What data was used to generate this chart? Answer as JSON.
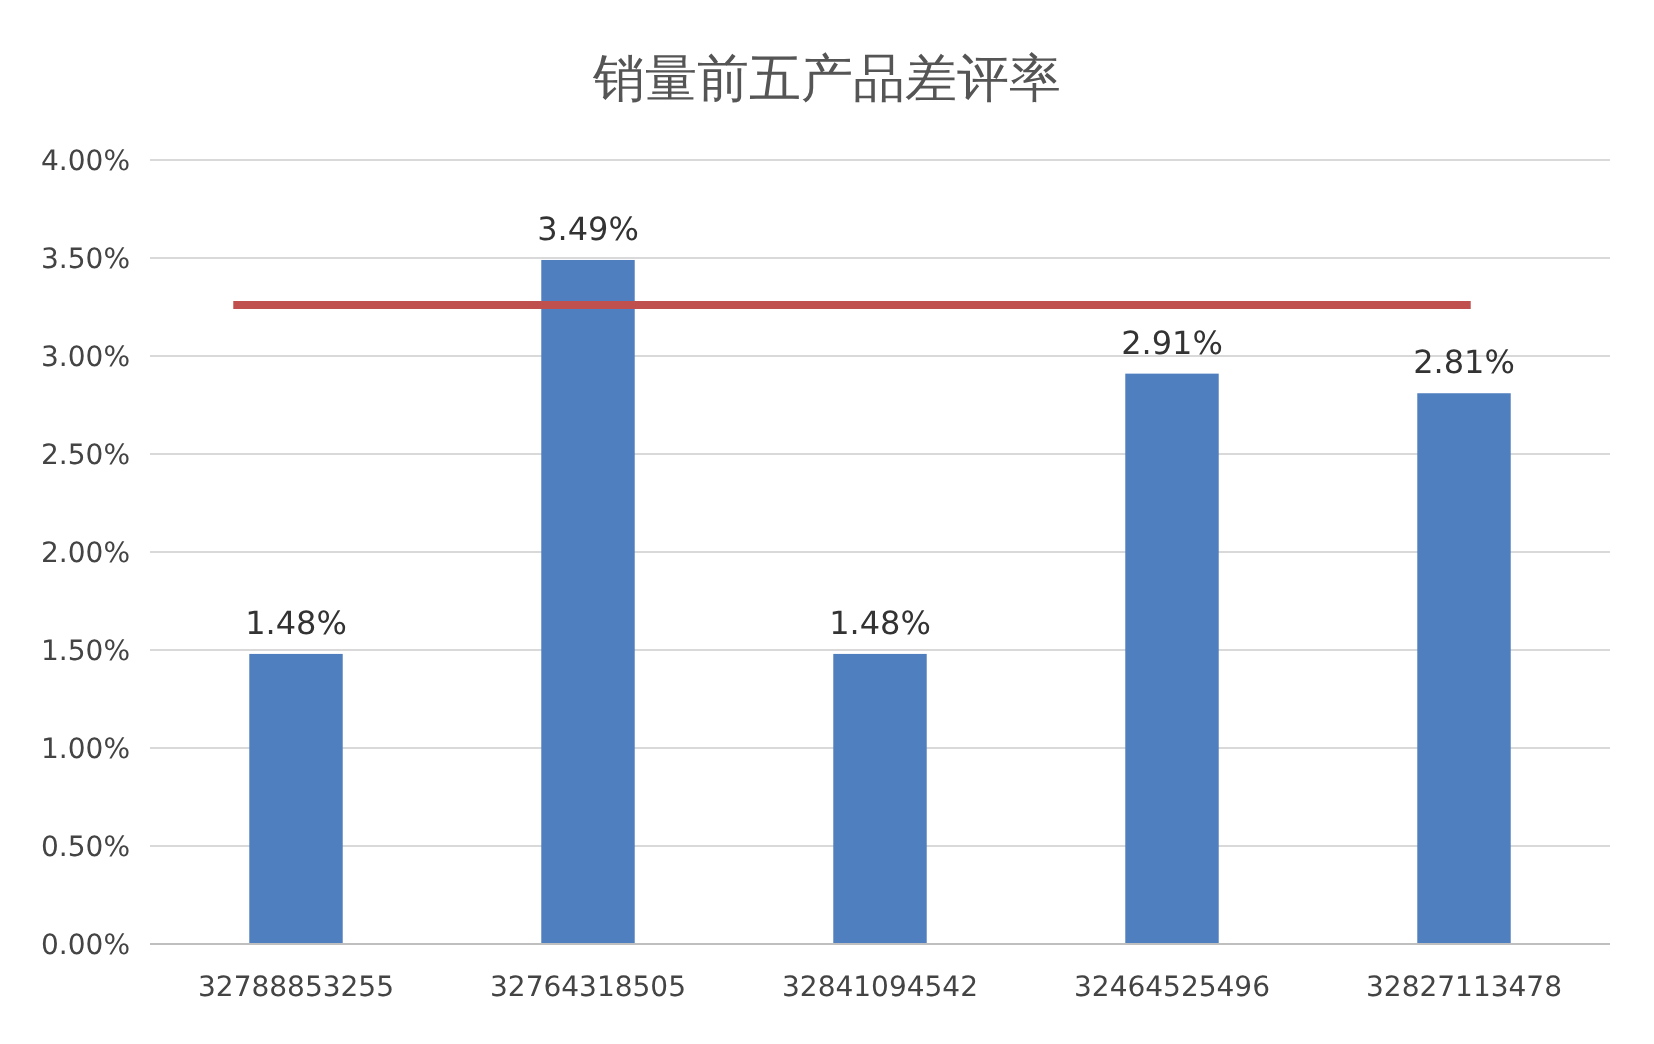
{
  "chart_data": {
    "type": "bar",
    "title": "销量前五产品差评率",
    "categories": [
      "32788853255",
      "32764318505",
      "32841094542",
      "32464525496",
      "32827113478"
    ],
    "values": [
      1.48,
      3.49,
      1.48,
      2.91,
      2.81
    ],
    "value_labels": [
      "1.48%",
      "3.49%",
      "1.48%",
      "2.91%",
      "2.81%"
    ],
    "color": "#4f7fbf",
    "ylim": [
      0,
      4
    ],
    "yticks": [
      {
        "value": 0,
        "label": "0.00%"
      },
      {
        "value": 0.5,
        "label": "0.50%"
      },
      {
        "value": 1,
        "label": "1.00%"
      },
      {
        "value": 1.5,
        "label": "1.50%"
      },
      {
        "value": 2,
        "label": "2.00%"
      },
      {
        "value": 2.5,
        "label": "2.50%"
      },
      {
        "value": 3,
        "label": "3.00%"
      },
      {
        "value": 3.5,
        "label": "3.50%"
      },
      {
        "value": 4,
        "label": "4.00%"
      }
    ],
    "grid": "y",
    "ref_lines": [
      {
        "axis": "y",
        "value": 3.26,
        "color": "#c0504d"
      }
    ]
  }
}
